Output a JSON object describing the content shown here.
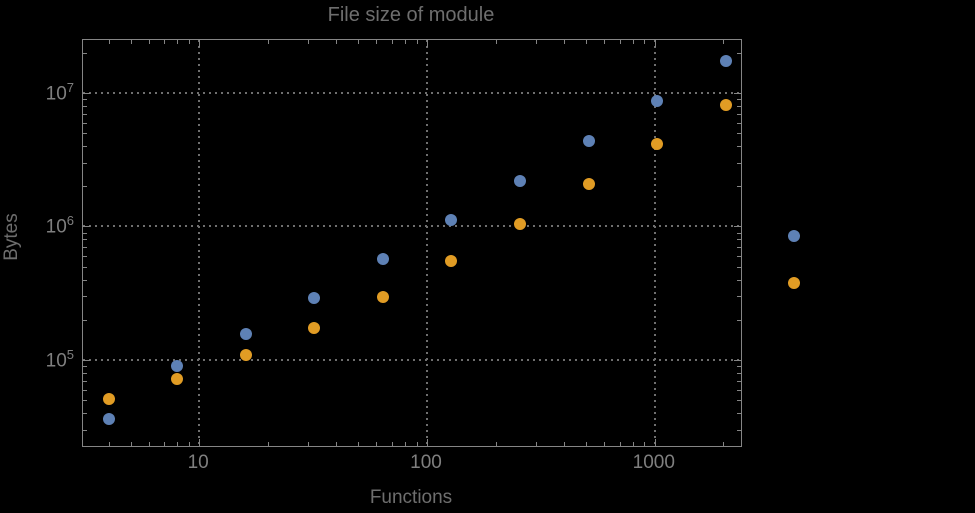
{
  "chart_data": {
    "type": "scatter",
    "title": "File size of module",
    "xlabel": "Functions",
    "ylabel": "Bytes",
    "x_scale": "log",
    "y_scale": "log",
    "xlim": [
      3.09,
      2390
    ],
    "ylim": [
      22700,
      24900000
    ],
    "grid": "dotted major decades",
    "legend": "none",
    "x": [
      4,
      8,
      16,
      32,
      64,
      128,
      256,
      512,
      1024,
      2048,
      4096
    ],
    "series": [
      {
        "name": "series-1-blue",
        "color": "#5e81b5",
        "values": [
          36000,
          90000,
          156000,
          293000,
          567000,
          1120000,
          2190000,
          4370000,
          8660000,
          17400000,
          853000
        ]
      },
      {
        "name": "series-2-orange",
        "color": "#e19c24",
        "values": [
          51000,
          72000,
          109000,
          173000,
          296000,
          554000,
          1040000,
          2080000,
          4130000,
          8130000,
          376000
        ]
      }
    ],
    "x_ticks": [
      {
        "value": 10,
        "label": "10"
      },
      {
        "value": 100,
        "label": "100"
      },
      {
        "value": 1000,
        "label": "1000"
      }
    ],
    "y_ticks": [
      {
        "value": 100000,
        "label_base": "10",
        "label_exp": "5"
      },
      {
        "value": 1000000,
        "label_base": "10",
        "label_exp": "6"
      },
      {
        "value": 10000000,
        "label_base": "10",
        "label_exp": "7"
      }
    ]
  },
  "colors": {
    "background": "#000000",
    "frame": "#858585",
    "gridline": "#6f6f6f",
    "tick_label": "#7f7f7f",
    "title_text": "#6e6e6e",
    "series_blue": "#5e81b5",
    "series_orange": "#e19c24"
  }
}
